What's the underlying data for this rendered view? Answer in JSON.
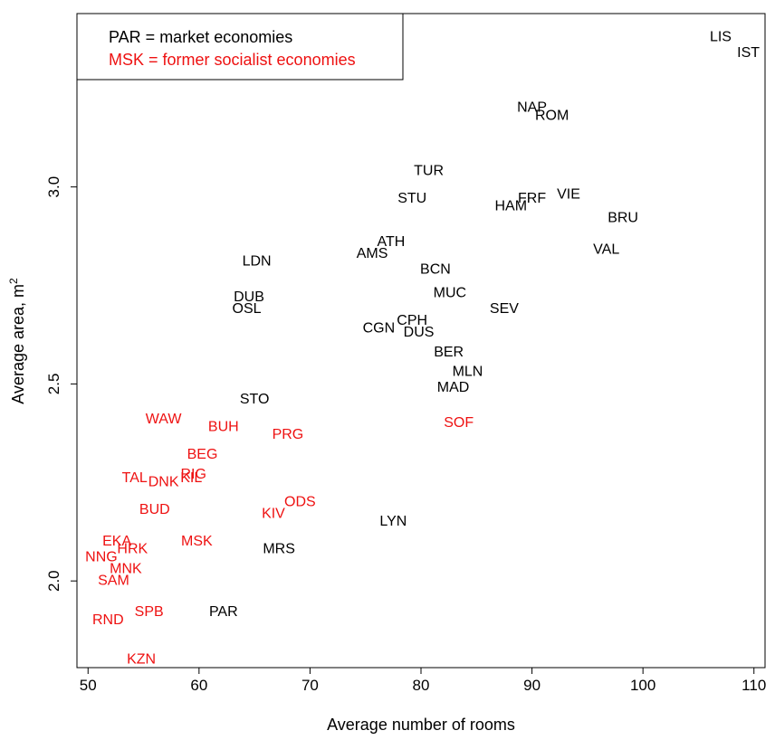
{
  "chart_data": {
    "type": "scatter",
    "xlabel": "Average number of rooms",
    "ylabel": "Average area, m",
    "ylabel_superscript": "2",
    "xlim": [
      49,
      111
    ],
    "ylim": [
      1.78,
      3.44
    ],
    "xticks": [
      "50",
      "60",
      "70",
      "80",
      "90",
      "100",
      "110"
    ],
    "xtick_values": [
      50,
      60,
      70,
      80,
      90,
      100,
      110
    ],
    "yticks": [
      "2.0",
      "2.5",
      "3.0"
    ],
    "ytick_values": [
      2.0,
      2.5,
      3.0
    ],
    "legend": {
      "position": "top-left",
      "entries": [
        {
          "text": "PAR = market economies",
          "color": "#000000"
        },
        {
          "text": "MSK = former socialist economies",
          "color": "#ee1111"
        }
      ]
    },
    "colors": {
      "market": "#000000",
      "socialist": "#ee1111"
    },
    "series": [
      {
        "group": "market",
        "points": [
          {
            "label": "LIS",
            "x": 107.0,
            "y": 3.38
          },
          {
            "label": "IST",
            "x": 109.5,
            "y": 3.34
          },
          {
            "label": "NAP",
            "x": 90.0,
            "y": 3.2
          },
          {
            "label": "ROM",
            "x": 91.8,
            "y": 3.18
          },
          {
            "label": "TUR",
            "x": 80.7,
            "y": 3.04
          },
          {
            "label": "STU",
            "x": 79.2,
            "y": 2.97
          },
          {
            "label": "FRF",
            "x": 90.0,
            "y": 2.97
          },
          {
            "label": "VIE",
            "x": 93.3,
            "y": 2.98
          },
          {
            "label": "HAM",
            "x": 88.1,
            "y": 2.95
          },
          {
            "label": "BRU",
            "x": 98.2,
            "y": 2.92
          },
          {
            "label": "ATH",
            "x": 77.3,
            "y": 2.86
          },
          {
            "label": "AMS",
            "x": 75.6,
            "y": 2.83
          },
          {
            "label": "VAL",
            "x": 96.7,
            "y": 2.84
          },
          {
            "label": "LDN",
            "x": 65.2,
            "y": 2.81
          },
          {
            "label": "BCN",
            "x": 81.3,
            "y": 2.79
          },
          {
            "label": "MUC",
            "x": 82.6,
            "y": 2.73
          },
          {
            "label": "DUB",
            "x": 64.5,
            "y": 2.72
          },
          {
            "label": "OSL",
            "x": 64.3,
            "y": 2.69
          },
          {
            "label": "SEV",
            "x": 87.5,
            "y": 2.69
          },
          {
            "label": "CPH",
            "x": 79.2,
            "y": 2.66
          },
          {
            "label": "CGN",
            "x": 76.2,
            "y": 2.64
          },
          {
            "label": "DUS",
            "x": 79.8,
            "y": 2.63
          },
          {
            "label": "BER",
            "x": 82.5,
            "y": 2.58
          },
          {
            "label": "MLN",
            "x": 84.2,
            "y": 2.53
          },
          {
            "label": "MAD",
            "x": 82.9,
            "y": 2.49
          },
          {
            "label": "STO",
            "x": 65.0,
            "y": 2.46
          },
          {
            "label": "LYN",
            "x": 77.5,
            "y": 2.15
          },
          {
            "label": "MRS",
            "x": 67.2,
            "y": 2.08
          },
          {
            "label": "PAR",
            "x": 62.2,
            "y": 1.92
          }
        ]
      },
      {
        "group": "socialist",
        "points": [
          {
            "label": "WAW",
            "x": 56.8,
            "y": 2.41
          },
          {
            "label": "BUH",
            "x": 62.2,
            "y": 2.39
          },
          {
            "label": "SOF",
            "x": 83.4,
            "y": 2.4
          },
          {
            "label": "PRG",
            "x": 68.0,
            "y": 2.37
          },
          {
            "label": "BEG",
            "x": 60.3,
            "y": 2.32
          },
          {
            "label": "TAL",
            "x": 54.2,
            "y": 2.26
          },
          {
            "label": "DNK",
            "x": 56.8,
            "y": 2.25
          },
          {
            "label": "KIL",
            "x": 59.3,
            "y": 2.26
          },
          {
            "label": "RIG",
            "x": 59.5,
            "y": 2.27
          },
          {
            "label": "ODS",
            "x": 69.1,
            "y": 2.2
          },
          {
            "label": "BUD",
            "x": 56.0,
            "y": 2.18
          },
          {
            "label": "KIV",
            "x": 66.7,
            "y": 2.17
          },
          {
            "label": "EKA",
            "x": 52.6,
            "y": 2.1
          },
          {
            "label": "MSK",
            "x": 59.8,
            "y": 2.1
          },
          {
            "label": "HRK",
            "x": 54.0,
            "y": 2.08
          },
          {
            "label": "NNG",
            "x": 51.2,
            "y": 2.06
          },
          {
            "label": "MNK",
            "x": 53.4,
            "y": 2.03
          },
          {
            "label": "SAM",
            "x": 52.3,
            "y": 2.0
          },
          {
            "label": "SPB",
            "x": 55.5,
            "y": 1.92
          },
          {
            "label": "RND",
            "x": 51.8,
            "y": 1.9
          },
          {
            "label": "KZN",
            "x": 54.8,
            "y": 1.8
          }
        ]
      }
    ]
  }
}
